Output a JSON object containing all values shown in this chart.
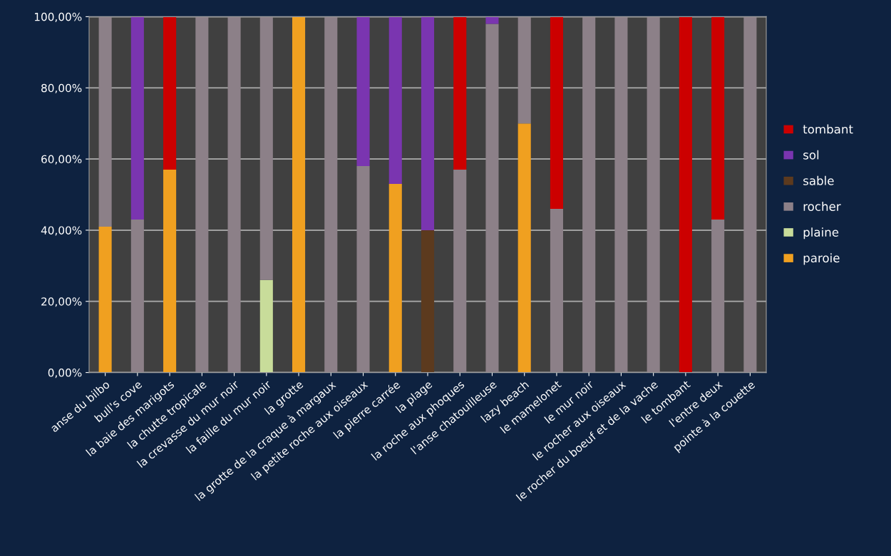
{
  "chart_data": {
    "type": "bar",
    "stacked": true,
    "categories": [
      "anse du bilbo",
      "bull's cove",
      "la baie des marigots",
      "la chutte tropicale",
      "la crevasse du mur noir",
      "la faille du mur noir",
      "la grotte",
      "la grotte de la craque à margaux",
      "la petite roche aux oiseaux",
      "la pierre carrée",
      "la plage",
      "la roche aux phoques",
      "l'anse chatouilleuse",
      "lazy beach",
      "le mamelonet",
      "le mur noir",
      "le rocher aux oiseaux",
      "le rocher du boeuf et de la vache",
      "le tombant",
      "l'entre deux",
      "pointe à la couette"
    ],
    "series": [
      {
        "name": "paroie",
        "color": "#f0a020",
        "values": [
          41,
          null,
          57,
          null,
          null,
          null,
          100,
          null,
          null,
          53,
          null,
          null,
          null,
          70,
          null,
          null,
          null,
          null,
          null,
          null,
          null
        ]
      },
      {
        "name": "plaine",
        "color": "#c8dc9a",
        "values": [
          null,
          null,
          null,
          null,
          null,
          26,
          null,
          null,
          null,
          null,
          null,
          null,
          null,
          null,
          null,
          null,
          null,
          null,
          null,
          null,
          null
        ]
      },
      {
        "name": "rocher",
        "color": "#8c8088",
        "values": [
          59,
          43,
          null,
          100,
          100,
          74,
          null,
          100,
          58,
          null,
          null,
          57,
          98,
          30,
          46,
          100,
          100,
          100,
          null,
          43,
          100
        ]
      },
      {
        "name": "sable",
        "color": "#5c3a1e",
        "values": [
          null,
          null,
          null,
          null,
          null,
          null,
          null,
          null,
          null,
          null,
          40,
          null,
          null,
          null,
          null,
          null,
          null,
          null,
          null,
          null,
          null
        ]
      },
      {
        "name": "sol",
        "color": "#7a35b0",
        "values": [
          null,
          57,
          null,
          null,
          null,
          null,
          null,
          null,
          42,
          47,
          60,
          null,
          2,
          null,
          null,
          null,
          null,
          null,
          null,
          null,
          null
        ]
      },
      {
        "name": "tombant",
        "color": "#cc0000",
        "values": [
          null,
          null,
          43,
          null,
          null,
          null,
          null,
          null,
          null,
          null,
          null,
          43,
          null,
          null,
          54,
          null,
          null,
          null,
          100,
          57,
          null
        ]
      }
    ],
    "ylim": [
      0,
      100
    ],
    "yticks": [
      {
        "value": 0,
        "label": "0,00%"
      },
      {
        "value": 20,
        "label": "20,00%"
      },
      {
        "value": 40,
        "label": "40,00%"
      },
      {
        "value": 60,
        "label": "60,00%"
      },
      {
        "value": 80,
        "label": "80,00%"
      },
      {
        "value": 100,
        "label": "100,00%"
      }
    ],
    "grid": "y",
    "legend": "right"
  }
}
